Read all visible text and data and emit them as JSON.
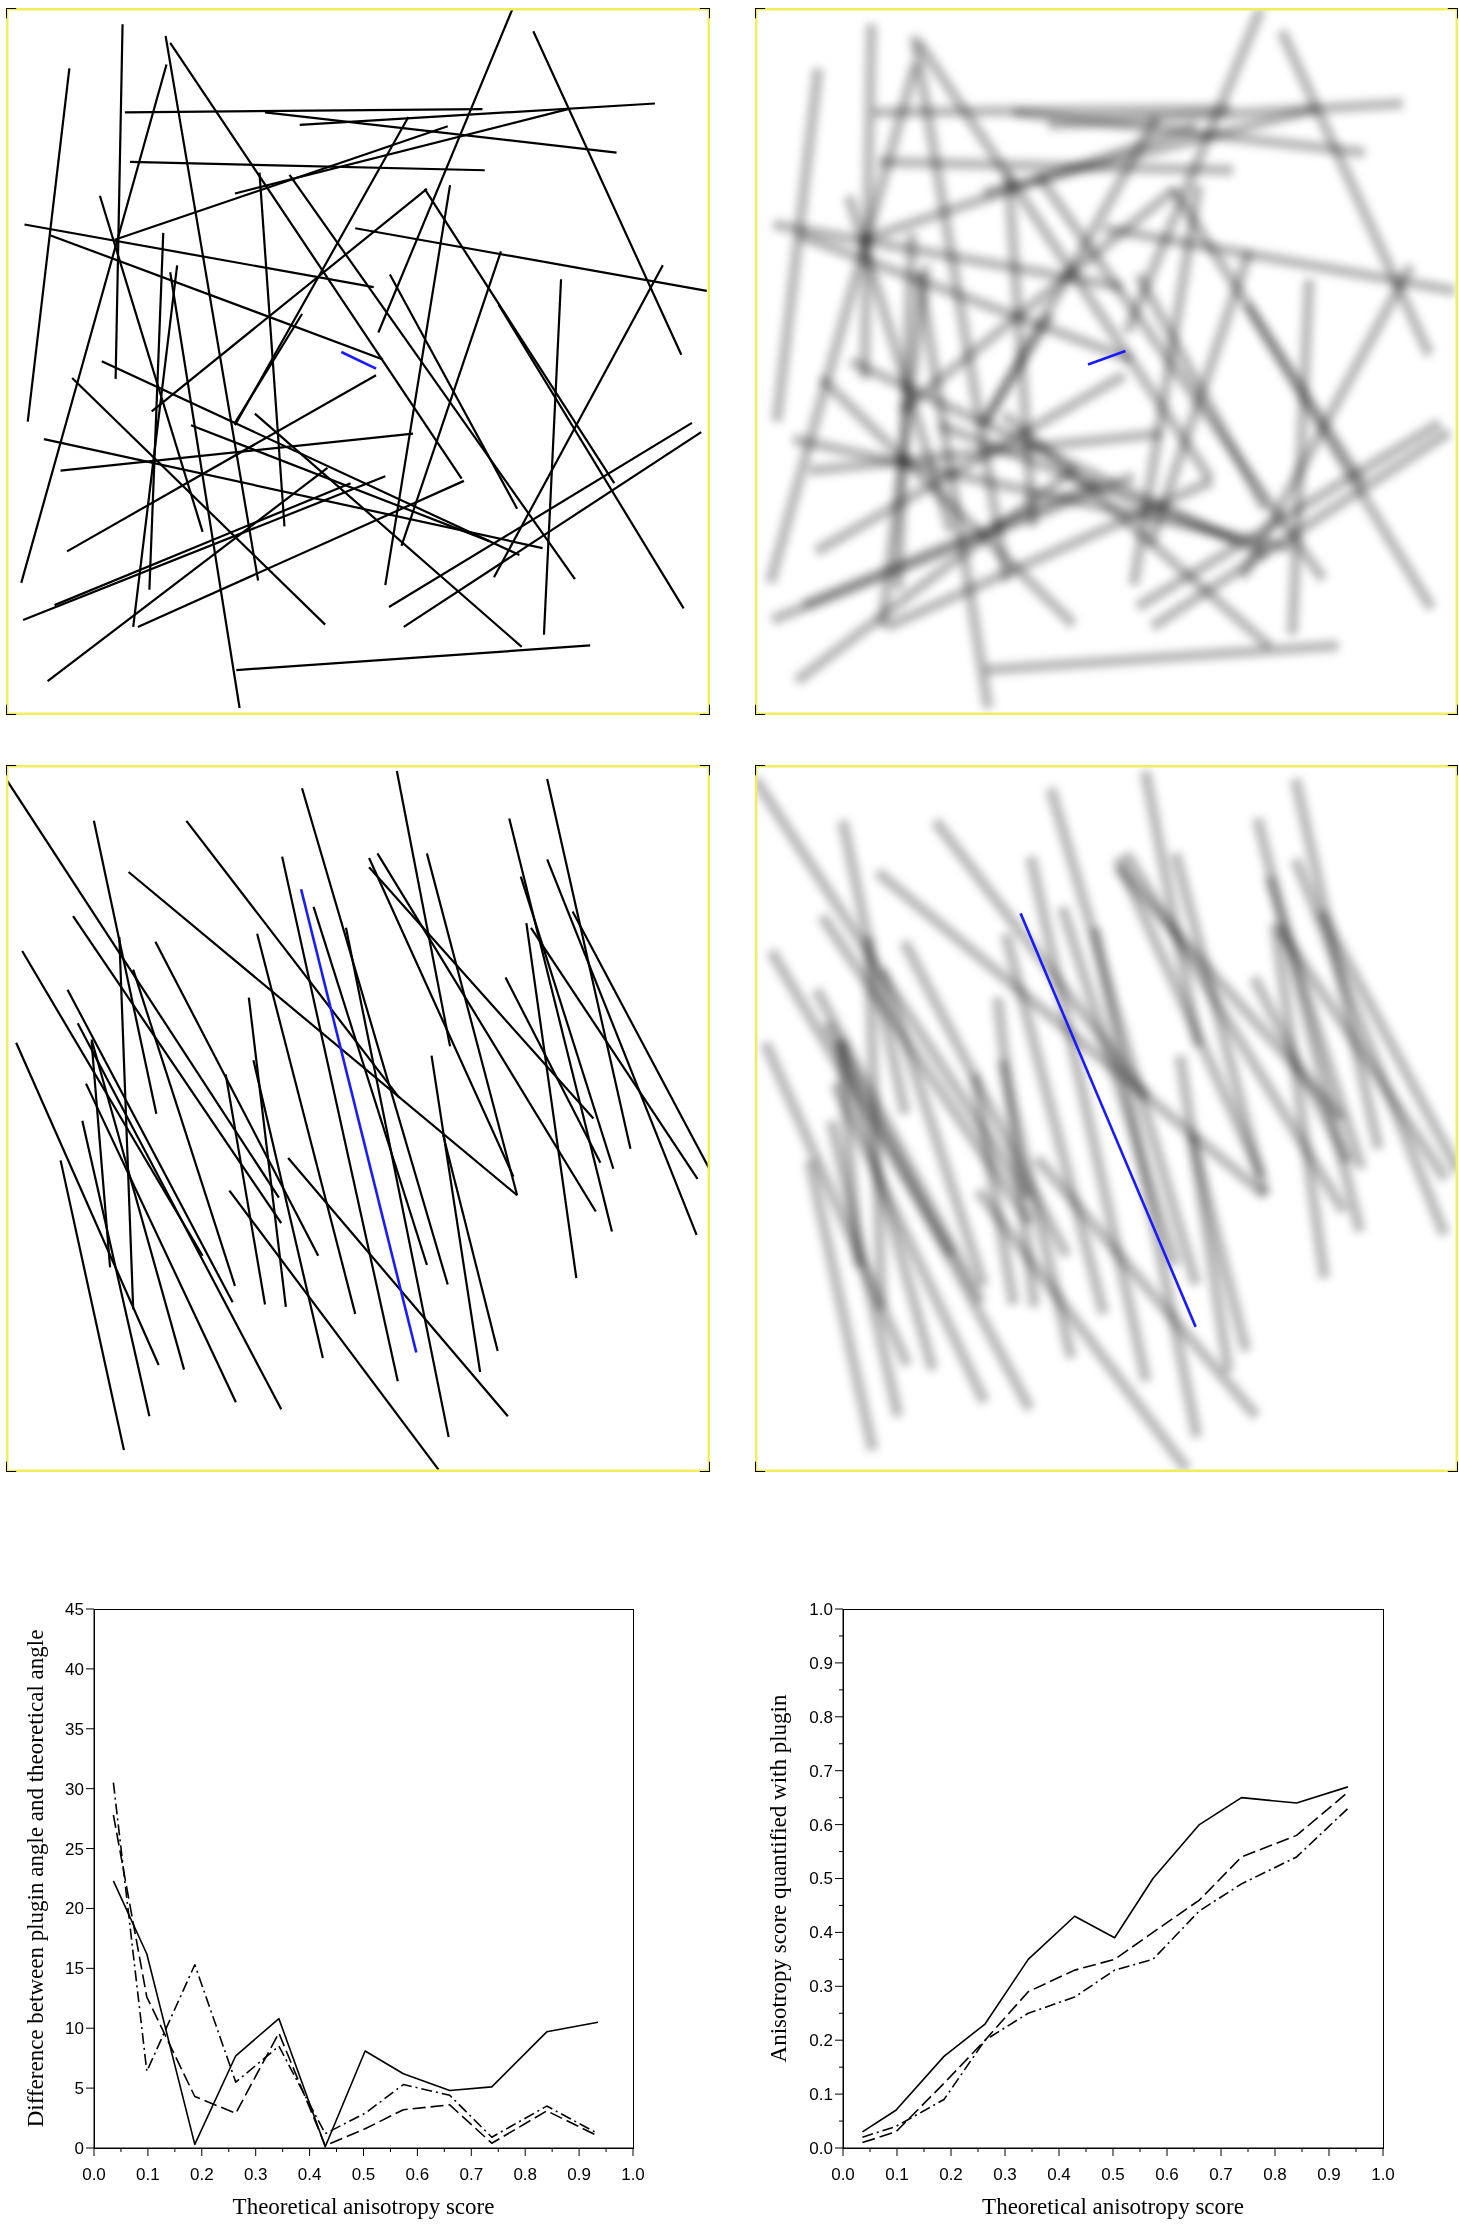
{
  "chart_data": [
    {
      "type": "line",
      "xlabel": "Theoretical anisotropy score",
      "ylabel": "Difference between plugin angle and theoretical angle",
      "x": [
        0.036,
        0.098,
        0.187,
        0.263,
        0.343,
        0.429,
        0.503,
        0.574,
        0.66,
        0.738,
        0.84,
        0.935
      ],
      "series": [
        {
          "color": "#000000",
          "line_style": "solid",
          "values": [
            22.3,
            16.2,
            0.3,
            7.7,
            10.8,
            0.1,
            8.1,
            6.2,
            4.8,
            5.1,
            9.7,
            10.5
          ]
        },
        {
          "color": "#000000",
          "line_style": "dashed",
          "values": [
            27.8,
            12.6,
            4.3,
            2.9,
            9.6,
            0.2,
            1.6,
            3.2,
            3.6,
            0.4,
            3.1,
            1.0
          ]
        },
        {
          "color": "#000000",
          "line_style": "dashdot",
          "values": [
            30.5,
            6.4,
            15.3,
            5.5,
            8.5,
            1.2,
            2.9,
            5.3,
            4.4,
            0.9,
            3.5,
            1.2
          ]
        }
      ],
      "xlim": [
        0,
        1
      ],
      "ylim": [
        0,
        45
      ],
      "xticks": [
        {
          "value": 0,
          "label": "0.0"
        },
        {
          "value": 0.05,
          "label": null
        },
        0.1,
        {
          "value": 0.15,
          "label": null
        },
        0.2,
        {
          "value": 0.25,
          "label": null
        },
        0.3,
        {
          "value": 0.35,
          "label": null
        },
        0.4,
        {
          "value": 0.45,
          "label": null
        },
        0.5,
        {
          "value": 0.55,
          "label": null
        },
        0.6,
        {
          "value": 0.65,
          "label": null
        },
        0.7,
        {
          "value": 0.75,
          "label": null
        },
        0.8,
        {
          "value": 0.85,
          "label": null
        },
        0.9,
        {
          "value": 0.95,
          "label": null
        },
        {
          "value": 1,
          "label": "1.0"
        }
      ],
      "yticks": [
        0,
        5,
        10,
        15,
        20,
        25,
        30,
        35,
        40,
        45
      ]
    },
    {
      "type": "line",
      "xlabel": "Theoretical anisotropy score",
      "ylabel": "Anisotropy score quantified with plugin",
      "x": [
        0.036,
        0.098,
        0.187,
        0.263,
        0.343,
        0.429,
        0.503,
        0.574,
        0.66,
        0.738,
        0.84,
        0.935
      ],
      "series": [
        {
          "color": "#000000",
          "line_style": "solid",
          "values": [
            0.03,
            0.07,
            0.17,
            0.23,
            0.35,
            0.43,
            0.39,
            0.5,
            0.6,
            0.65,
            0.64,
            0.67
          ]
        },
        {
          "color": "#000000",
          "line_style": "dashed",
          "values": [
            0.01,
            0.03,
            0.12,
            0.2,
            0.29,
            0.33,
            0.35,
            0.4,
            0.46,
            0.54,
            0.58,
            0.66
          ]
        },
        {
          "color": "#000000",
          "line_style": "dashdot",
          "values": [
            0.02,
            0.04,
            0.09,
            0.2,
            0.25,
            0.28,
            0.33,
            0.35,
            0.44,
            0.49,
            0.54,
            0.63
          ]
        }
      ],
      "xlim": [
        0,
        1
      ],
      "ylim": [
        0,
        1
      ],
      "xticks": [
        {
          "value": 0,
          "label": "0.0"
        },
        {
          "value": 0.05,
          "label": null
        },
        0.1,
        {
          "value": 0.15,
          "label": null
        },
        0.2,
        {
          "value": 0.25,
          "label": null
        },
        0.3,
        {
          "value": 0.35,
          "label": null
        },
        0.4,
        {
          "value": 0.45,
          "label": null
        },
        0.5,
        {
          "value": 0.55,
          "label": null
        },
        0.6,
        {
          "value": 0.65,
          "label": null
        },
        0.7,
        {
          "value": 0.75,
          "label": null
        },
        0.8,
        {
          "value": 0.85,
          "label": null
        },
        0.9,
        {
          "value": 0.95,
          "label": null
        },
        {
          "value": 1,
          "label": "1.0"
        }
      ],
      "yticks": [
        {
          "value": 0,
          "label": "0.0"
        },
        {
          "value": 0.05,
          "label": null
        },
        0.1,
        {
          "value": 0.15,
          "label": null
        },
        0.2,
        {
          "value": 0.25,
          "label": null
        },
        0.3,
        {
          "value": 0.35,
          "label": null
        },
        0.4,
        {
          "value": 0.45,
          "label": null
        },
        0.5,
        {
          "value": 0.55,
          "label": null
        },
        0.6,
        {
          "value": 0.65,
          "label": null
        },
        0.7,
        {
          "value": 0.75,
          "label": null
        },
        0.8,
        {
          "value": 0.85,
          "label": null
        },
        0.9,
        {
          "value": 0.95,
          "label": null
        },
        {
          "value": 1,
          "label": "1.0"
        }
      ]
    }
  ]
}
